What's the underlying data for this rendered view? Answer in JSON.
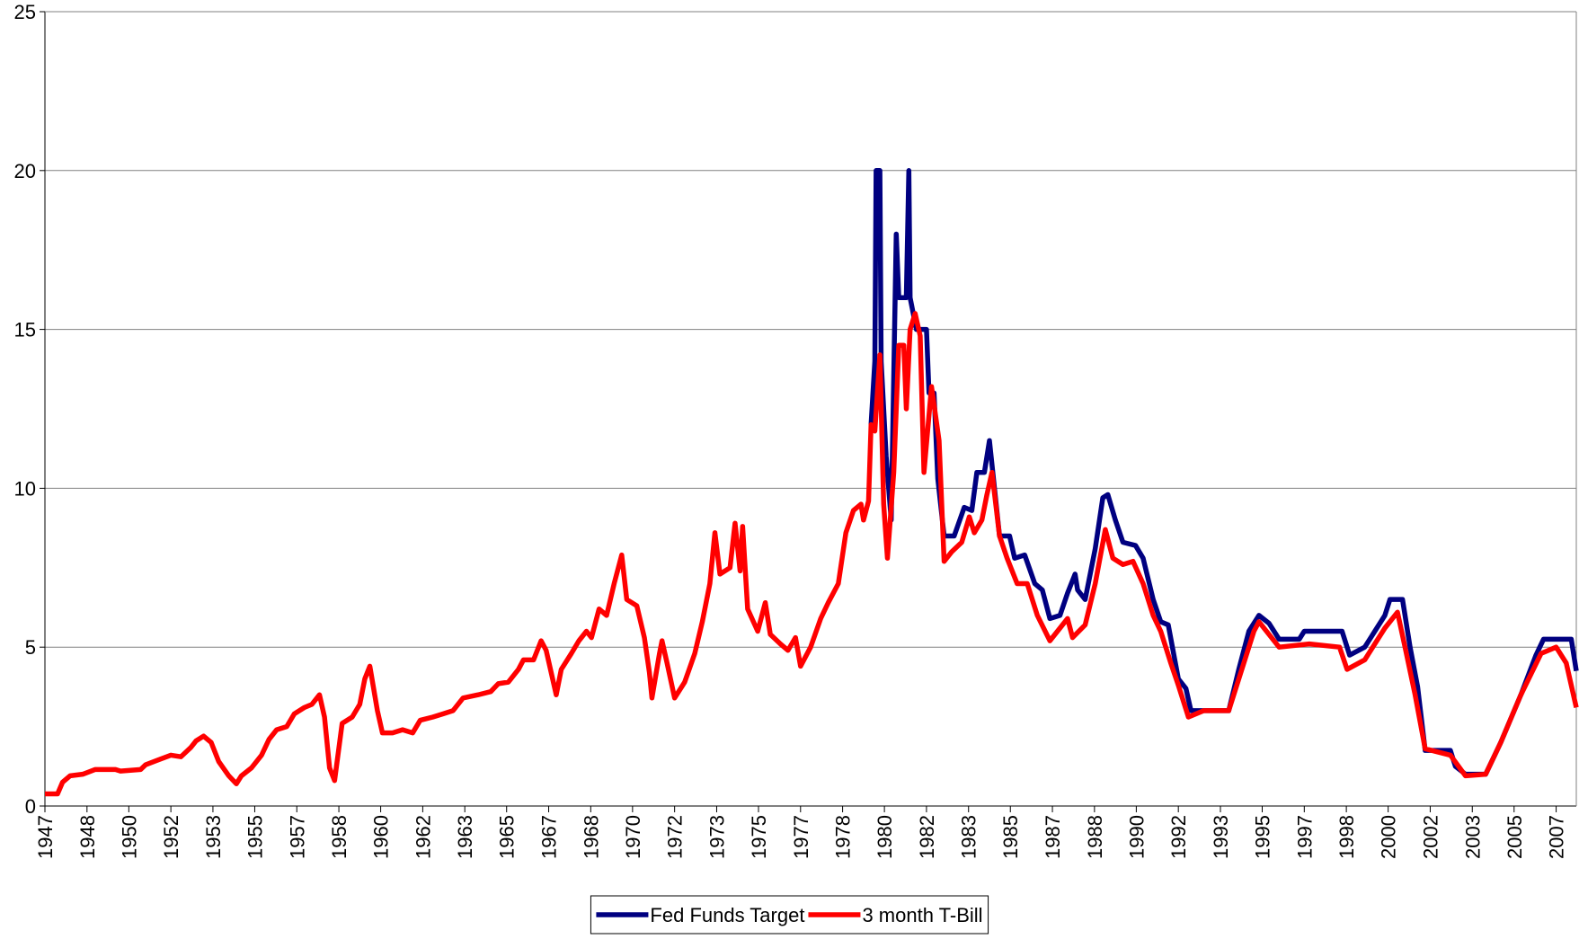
{
  "chart_data": {
    "type": "line",
    "xlim": [
      1947,
      2007.8
    ],
    "ylim": [
      0,
      25
    ],
    "yticks": [
      0,
      5,
      10,
      15,
      20,
      25
    ],
    "xticks": [
      1947,
      {
        "value": 1948.67,
        "label": "1948"
      },
      {
        "value": 1950.33,
        "label": "1950"
      },
      1952,
      {
        "value": 1953.67,
        "label": "1953"
      },
      {
        "value": 1955.33,
        "label": "1955"
      },
      1957,
      {
        "value": 1958.67,
        "label": "1958"
      },
      {
        "value": 1960.33,
        "label": "1960"
      },
      1962,
      {
        "value": 1963.67,
        "label": "1963"
      },
      {
        "value": 1965.33,
        "label": "1965"
      },
      1967,
      {
        "value": 1968.67,
        "label": "1968"
      },
      {
        "value": 1970.33,
        "label": "1970"
      },
      1972,
      {
        "value": 1973.67,
        "label": "1973"
      },
      {
        "value": 1975.33,
        "label": "1975"
      },
      1977,
      {
        "value": 1978.67,
        "label": "1978"
      },
      {
        "value": 1980.33,
        "label": "1980"
      },
      1982,
      {
        "value": 1983.67,
        "label": "1983"
      },
      {
        "value": 1985.33,
        "label": "1985"
      },
      1987,
      {
        "value": 1988.67,
        "label": "1988"
      },
      {
        "value": 1990.33,
        "label": "1990"
      },
      1992,
      {
        "value": 1993.67,
        "label": "1993"
      },
      {
        "value": 1995.33,
        "label": "1995"
      },
      1997,
      {
        "value": 1998.67,
        "label": "1998"
      },
      {
        "value": 2000.33,
        "label": "2000"
      },
      2002,
      {
        "value": 2003.67,
        "label": "2003"
      },
      {
        "value": 2005.33,
        "label": "2005"
      },
      2007
    ],
    "grid": true,
    "legend": "bottom",
    "series": [
      {
        "name": "Fed Funds Target",
        "color": "#000080",
        "x": [
          1979.8,
          1979.95,
          1980.0,
          1980.15,
          1980.2,
          1980.4,
          1980.6,
          1980.8,
          1980.9,
          1981.2,
          1981.3,
          1981.35,
          1981.6,
          1981.8,
          1982.0,
          1982.1,
          1982.3,
          1982.45,
          1982.7,
          1983.1,
          1983.5,
          1983.8,
          1984.0,
          1984.3,
          1984.5,
          1984.7,
          1984.9,
          1985.3,
          1985.5,
          1985.9,
          1986.3,
          1986.6,
          1986.9,
          1987.3,
          1987.6,
          1987.9,
          1988.0,
          1988.3,
          1988.7,
          1989.0,
          1989.2,
          1989.5,
          1989.8,
          1990.3,
          1990.6,
          1991.0,
          1991.3,
          1991.6,
          1992.0,
          1992.3,
          1992.5,
          1993.0,
          1994.0,
          1994.4,
          1994.8,
          1995.2,
          1995.6,
          1996.0,
          1996.8,
          1997.0,
          1998.5,
          1998.8,
          1999.4,
          1999.8,
          2000.2,
          2000.4,
          2000.9,
          2001.2,
          2001.5,
          2001.8,
          2002.8,
          2003.0,
          2003.4,
          2004.2,
          2004.8,
          2005.6,
          2006.2,
          2006.5,
          2007.6,
          2007.8
        ],
        "values": [
          12,
          14,
          20,
          20,
          14,
          11,
          9,
          18,
          16,
          16,
          20,
          16,
          15,
          15,
          15,
          13,
          13,
          10.3,
          8.5,
          8.5,
          9.4,
          9.3,
          10.5,
          10.5,
          11.5,
          10,
          8.5,
          8.5,
          7.8,
          7.9,
          7,
          6.8,
          5.9,
          6,
          6.7,
          7.3,
          6.8,
          6.5,
          8.1,
          9.7,
          9.8,
          9,
          8.3,
          8.2,
          7.8,
          6.5,
          5.8,
          5.7,
          4,
          3.7,
          3,
          3,
          3,
          4.3,
          5.5,
          6,
          5.75,
          5.25,
          5.25,
          5.5,
          5.5,
          4.75,
          5,
          5.5,
          6,
          6.5,
          6.5,
          5,
          3.75,
          1.75,
          1.75,
          1.25,
          1,
          1,
          2,
          3.5,
          4.75,
          5.25,
          5.25,
          4.25
        ]
      },
      {
        "name": "3 month T-Bill",
        "color": "#ff0000",
        "x": [
          1947.0,
          1947.5,
          1947.7,
          1948.0,
          1948.5,
          1949.0,
          1949.8,
          1950.0,
          1950.8,
          1951.0,
          1951.5,
          1952.0,
          1952.4,
          1952.8,
          1953.0,
          1953.3,
          1953.6,
          1953.9,
          1954.3,
          1954.6,
          1954.8,
          1955.2,
          1955.6,
          1955.9,
          1956.2,
          1956.6,
          1956.9,
          1957.3,
          1957.6,
          1957.9,
          1958.1,
          1958.3,
          1958.5,
          1958.8,
          1959.2,
          1959.5,
          1959.7,
          1959.9,
          1960.2,
          1960.4,
          1960.8,
          1961.2,
          1961.6,
          1961.9,
          1962.4,
          1962.8,
          1963.2,
          1963.6,
          1964.2,
          1964.7,
          1965.0,
          1965.4,
          1965.8,
          1966.0,
          1966.4,
          1966.7,
          1966.9,
          1967.1,
          1967.3,
          1967.5,
          1967.9,
          1968.2,
          1968.5,
          1968.7,
          1969.0,
          1969.3,
          1969.6,
          1969.9,
          1970.1,
          1970.5,
          1970.8,
          1971.0,
          1971.1,
          1971.4,
          1971.5,
          1971.7,
          1972.0,
          1972.4,
          1972.8,
          1973.1,
          1973.4,
          1973.6,
          1973.8,
          1974.2,
          1974.4,
          1974.6,
          1974.7,
          1974.9,
          1975.3,
          1975.6,
          1975.8,
          1976.2,
          1976.5,
          1976.8,
          1977.0,
          1977.4,
          1977.8,
          1978.1,
          1978.5,
          1978.8,
          1979.1,
          1979.4,
          1979.5,
          1979.7,
          1979.8,
          1979.95,
          1980.15,
          1980.3,
          1980.45,
          1980.7,
          1980.9,
          1981.1,
          1981.2,
          1981.35,
          1981.55,
          1981.75,
          1981.9,
          1982.2,
          1982.5,
          1982.7,
          1983.0,
          1983.4,
          1983.7,
          1983.9,
          1984.2,
          1984.4,
          1984.6,
          1984.9,
          1985.2,
          1985.6,
          1986.0,
          1986.4,
          1986.9,
          1987.3,
          1987.6,
          1987.8,
          1988.3,
          1988.7,
          1989.1,
          1989.4,
          1989.8,
          1990.2,
          1990.6,
          1991.0,
          1991.3,
          1991.7,
          1992.0,
          1992.4,
          1993.0,
          1994.0,
          1994.4,
          1995.0,
          1995.2,
          1996.0,
          1997.2,
          1998.4,
          1998.7,
          1999.4,
          2000.2,
          2000.7,
          2001.0,
          2001.4,
          2001.8,
          2002.8,
          2003.4,
          2004.2,
          2004.8,
          2005.6,
          2006.4,
          2007.0,
          2007.4,
          2007.6,
          2007.8
        ],
        "values": [
          0.38,
          0.38,
          0.75,
          0.95,
          1.0,
          1.15,
          1.15,
          1.1,
          1.15,
          1.3,
          1.45,
          1.6,
          1.55,
          1.85,
          2.05,
          2.2,
          2.0,
          1.4,
          0.95,
          0.7,
          0.95,
          1.2,
          1.6,
          2.1,
          2.4,
          2.5,
          2.9,
          3.1,
          3.2,
          3.5,
          2.8,
          1.2,
          0.8,
          2.6,
          2.8,
          3.2,
          4.0,
          4.4,
          3.0,
          2.3,
          2.3,
          2.4,
          2.3,
          2.7,
          2.8,
          2.9,
          3.0,
          3.4,
          3.5,
          3.6,
          3.85,
          3.9,
          4.3,
          4.6,
          4.6,
          5.2,
          4.9,
          4.2,
          3.5,
          4.3,
          4.8,
          5.2,
          5.5,
          5.3,
          6.2,
          6.0,
          7.0,
          7.9,
          6.5,
          6.3,
          5.3,
          4.2,
          3.4,
          4.8,
          5.2,
          4.5,
          3.4,
          3.9,
          4.8,
          5.8,
          7.0,
          8.6,
          7.3,
          7.5,
          8.9,
          7.4,
          8.8,
          6.2,
          5.5,
          6.4,
          5.4,
          5.1,
          4.9,
          5.3,
          4.4,
          5.0,
          5.9,
          6.4,
          7.0,
          8.6,
          9.3,
          9.5,
          9.0,
          9.6,
          12.0,
          11.8,
          14.2,
          9.5,
          7.8,
          10.5,
          14.5,
          14.5,
          12.5,
          15.0,
          15.5,
          14.8,
          10.5,
          13.2,
          11.5,
          7.7,
          8.0,
          8.3,
          9.1,
          8.6,
          9.0,
          9.8,
          10.5,
          8.5,
          7.8,
          7.0,
          7.0,
          6.0,
          5.2,
          5.6,
          5.9,
          5.3,
          5.7,
          7.0,
          8.7,
          7.8,
          7.6,
          7.7,
          7.0,
          6.0,
          5.5,
          4.5,
          3.8,
          2.8,
          3.0,
          3.0,
          4.0,
          5.5,
          5.8,
          5.0,
          5.1,
          5.0,
          4.3,
          4.6,
          5.6,
          6.1,
          5.0,
          3.5,
          1.8,
          1.6,
          0.95,
          1.0,
          2.0,
          3.5,
          4.8,
          5.0,
          4.5,
          3.8,
          3.1
        ]
      }
    ]
  }
}
